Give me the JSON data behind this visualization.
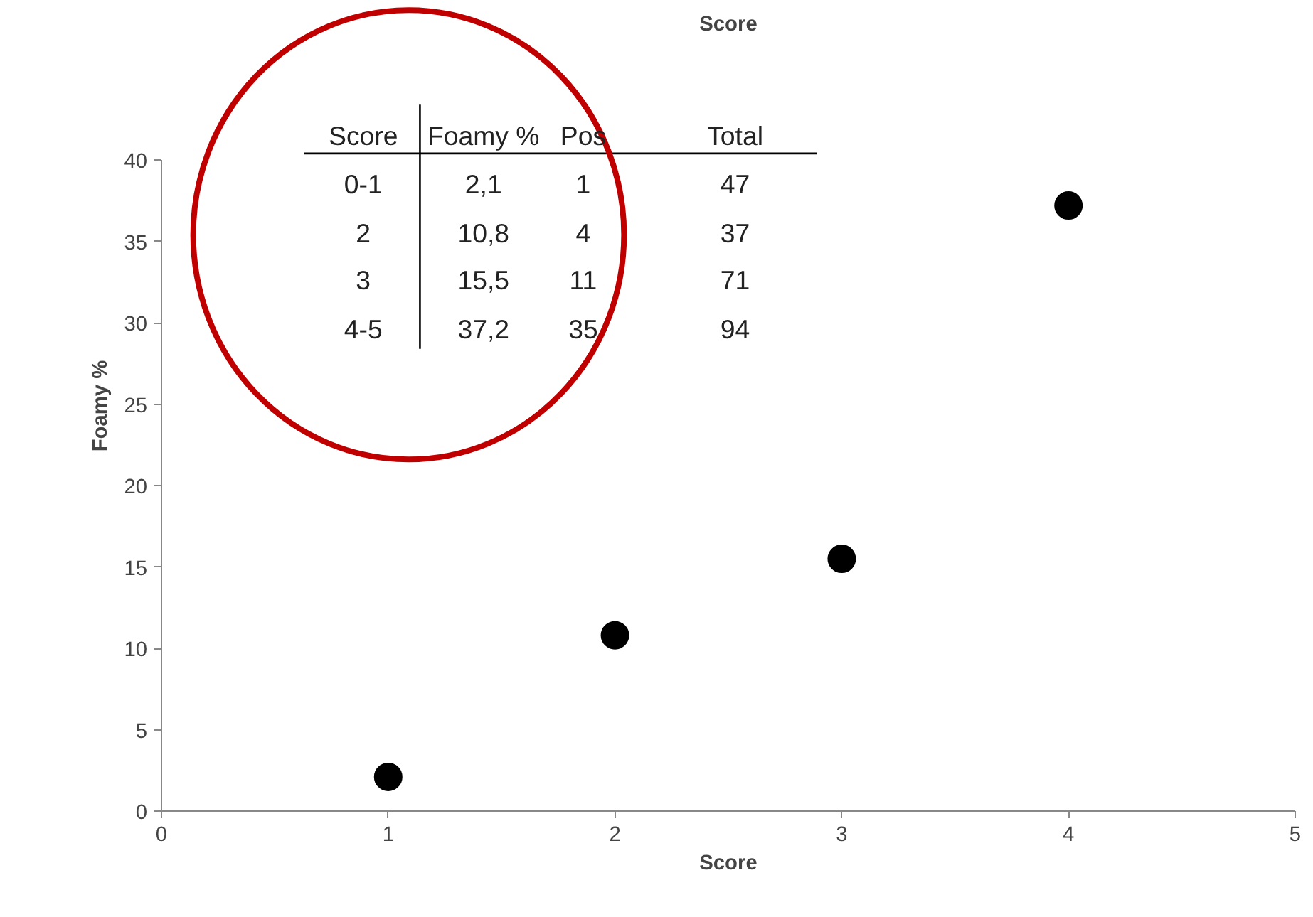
{
  "chart_data": {
    "type": "scatter",
    "title": "Score",
    "xlabel": "Score",
    "ylabel": "Foamy %",
    "x": [
      1,
      2,
      3,
      4
    ],
    "series": [
      {
        "color": "#000000",
        "values": [
          2.1,
          10.8,
          15.5,
          37.2
        ]
      }
    ],
    "xlim": [
      0,
      5
    ],
    "xticks": [
      0,
      1,
      2,
      3,
      4,
      5
    ],
    "ylim": [
      0,
      40
    ],
    "yticks": [
      0,
      5,
      10,
      15,
      20,
      25,
      30,
      35,
      40
    ],
    "grid": false,
    "marker": "circle",
    "annotations": [
      "Score",
      "Foamy %",
      "Pos",
      "Total",
      "0-1",
      "2,1",
      "1",
      "47",
      "2",
      "10,8",
      "4",
      "37",
      "3",
      "15,5",
      "11",
      "71",
      "4-5",
      "37,2",
      "35",
      "94"
    ]
  }
}
